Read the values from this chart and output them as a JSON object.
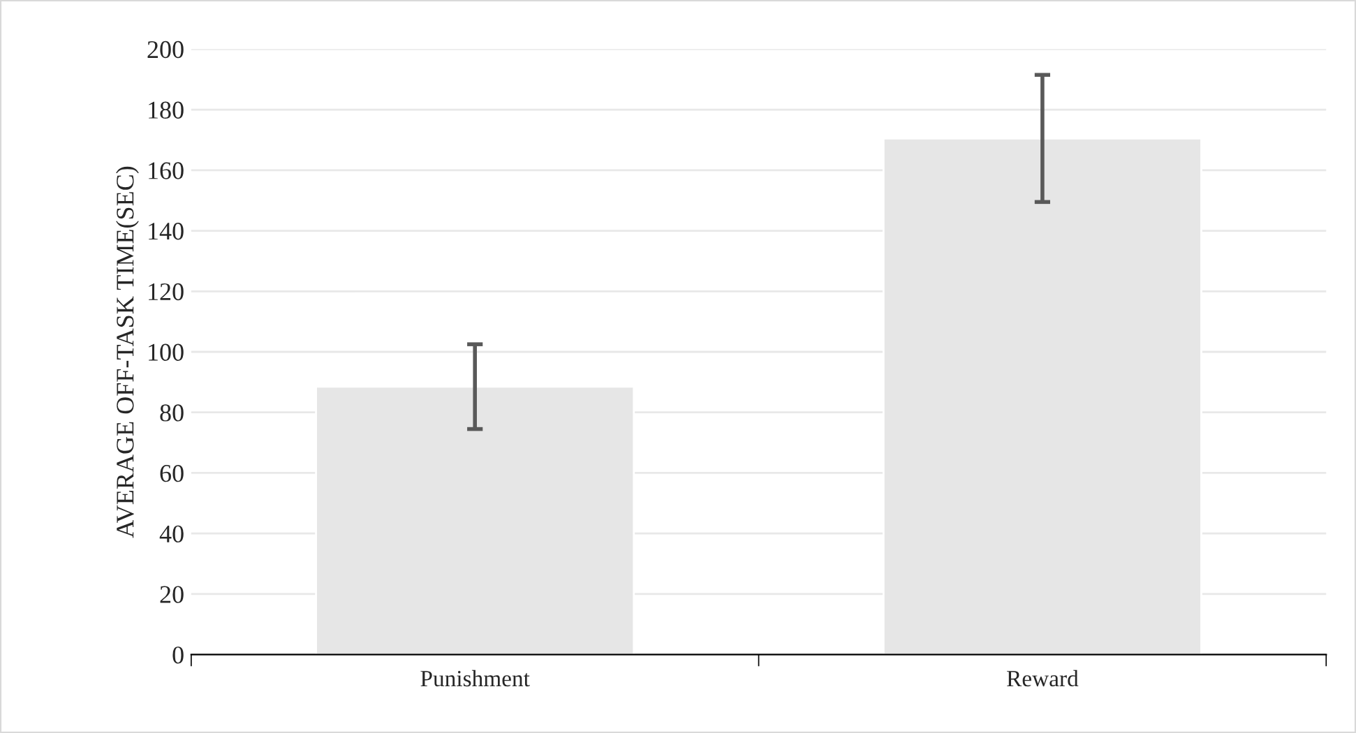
{
  "chart_data": {
    "type": "bar",
    "ylabel": "AVERAGE OFF-TASK TIME(SEC)",
    "categories": [
      "Punishment",
      "Reward"
    ],
    "values": [
      88.5,
      170.5
    ],
    "errors": [
      14,
      21
    ],
    "color": "#e6e6e6",
    "ylim": [
      0,
      200
    ],
    "yticks": [
      0,
      20,
      40,
      60,
      80,
      100,
      120,
      140,
      160,
      180,
      200
    ],
    "grid": "y"
  }
}
